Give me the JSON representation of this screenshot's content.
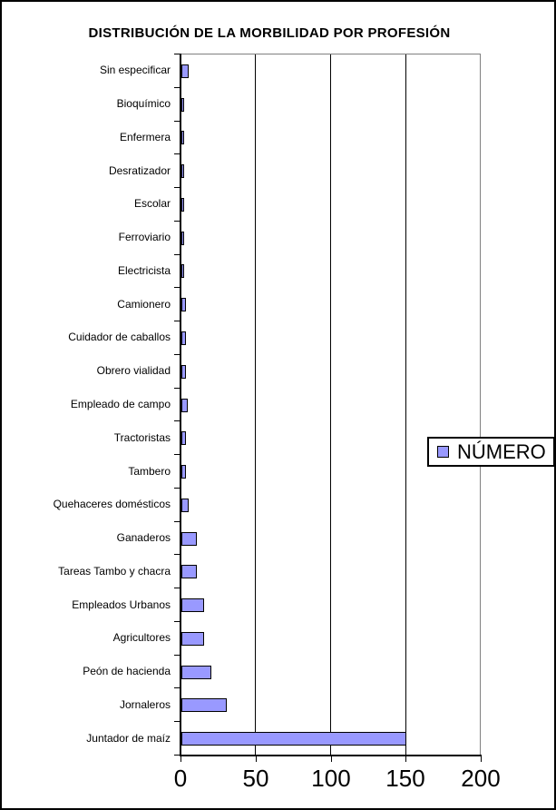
{
  "chart_data": {
    "type": "bar",
    "orientation": "horizontal",
    "title": "DISTRIBUCIÓN DE LA MORBILIDAD POR PROFESIÓN",
    "categories": [
      "Sin especificar",
      "Bioquímico",
      "Enfermera",
      "Desratizador",
      "Escolar",
      "Ferroviario",
      "Electricista",
      "Camionero",
      "Cuidador de caballos",
      "Obrero vialidad",
      "Empleado de campo",
      "Tractoristas",
      "Tambero",
      "Quehaceres domésticos",
      "Ganaderos",
      "Tareas Tambo y chacra",
      "Empleados Urbanos",
      "Agricultores",
      "Peón de hacienda",
      "Jornaleros",
      "Juntador de maíz"
    ],
    "series": [
      {
        "name": "NÚMERO",
        "values": [
          5,
          2,
          2,
          2,
          2,
          2,
          2,
          3,
          3,
          3,
          4,
          3,
          3,
          5,
          10,
          10,
          15,
          15,
          20,
          30,
          150
        ]
      }
    ],
    "xlim": [
      0,
      200
    ],
    "xticks": [
      0,
      50,
      100,
      150,
      200
    ],
    "grid": true,
    "gridlines_at": [
      50,
      100,
      150
    ],
    "legend_position": "right-middle",
    "colors": {
      "bar_fill": "#9999FF",
      "bar_border": "#000000",
      "gridline": "#000000",
      "plot_border": "#808080",
      "axis": "#000000",
      "background": "#FFFFFF",
      "text": "#000000"
    }
  }
}
